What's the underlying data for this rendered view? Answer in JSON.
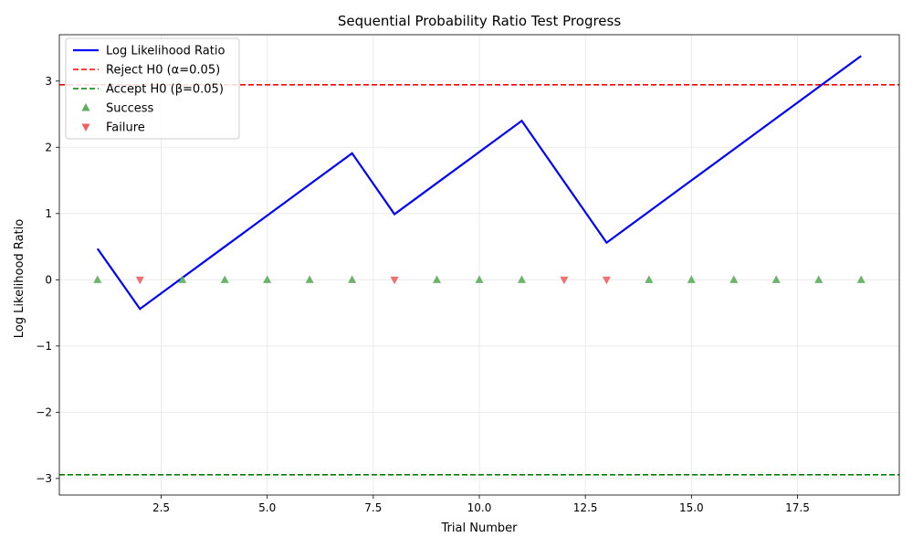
{
  "chart_data": {
    "type": "line",
    "title": "Sequential Probability Ratio Test Progress",
    "xlabel": "Trial Number",
    "ylabel": "Log Likelihood Ratio",
    "xlim": [
      0.1,
      19.9
    ],
    "ylim": [
      -3.25,
      3.7
    ],
    "x_ticks": [
      2.5,
      5.0,
      7.5,
      10.0,
      12.5,
      15.0,
      17.5
    ],
    "x_tick_labels": [
      "2.5",
      "5.0",
      "7.5",
      "10.0",
      "12.5",
      "15.0",
      "17.5"
    ],
    "y_ticks": [
      -3,
      -2,
      -1,
      0,
      1,
      2,
      3
    ],
    "y_tick_labels": [
      "−3",
      "−2",
      "−1",
      "0",
      "1",
      "2",
      "3"
    ],
    "grid": true,
    "legend_position": "top-left",
    "series": [
      {
        "name": "Log Likelihood Ratio",
        "color": "#0000ff",
        "x": [
          1,
          2,
          3,
          4,
          5,
          6,
          7,
          8,
          9,
          10,
          11,
          12,
          13,
          14,
          15,
          16,
          17,
          18,
          19
        ],
        "values": [
          0.47,
          -0.44,
          0.03,
          0.5,
          0.97,
          1.44,
          1.91,
          0.99,
          1.46,
          1.93,
          2.4,
          1.48,
          0.56,
          1.03,
          1.5,
          1.97,
          2.44,
          2.91,
          3.38
        ]
      }
    ],
    "thresholds": [
      {
        "name": "Reject H0 (α=0.05)",
        "value": 2.944,
        "color": "#ff0000"
      },
      {
        "name": "Accept H0 (β=0.05)",
        "value": -2.944,
        "color": "#008000"
      }
    ],
    "markers": [
      {
        "name": "Success",
        "color": "#5aad5a",
        "x": [
          1,
          3,
          4,
          5,
          6,
          7,
          9,
          10,
          11,
          14,
          15,
          16,
          17,
          18,
          19
        ],
        "y": 0
      },
      {
        "name": "Failure",
        "color": "#f06060",
        "x": [
          2,
          8,
          12,
          13
        ],
        "y": 0
      }
    ]
  }
}
